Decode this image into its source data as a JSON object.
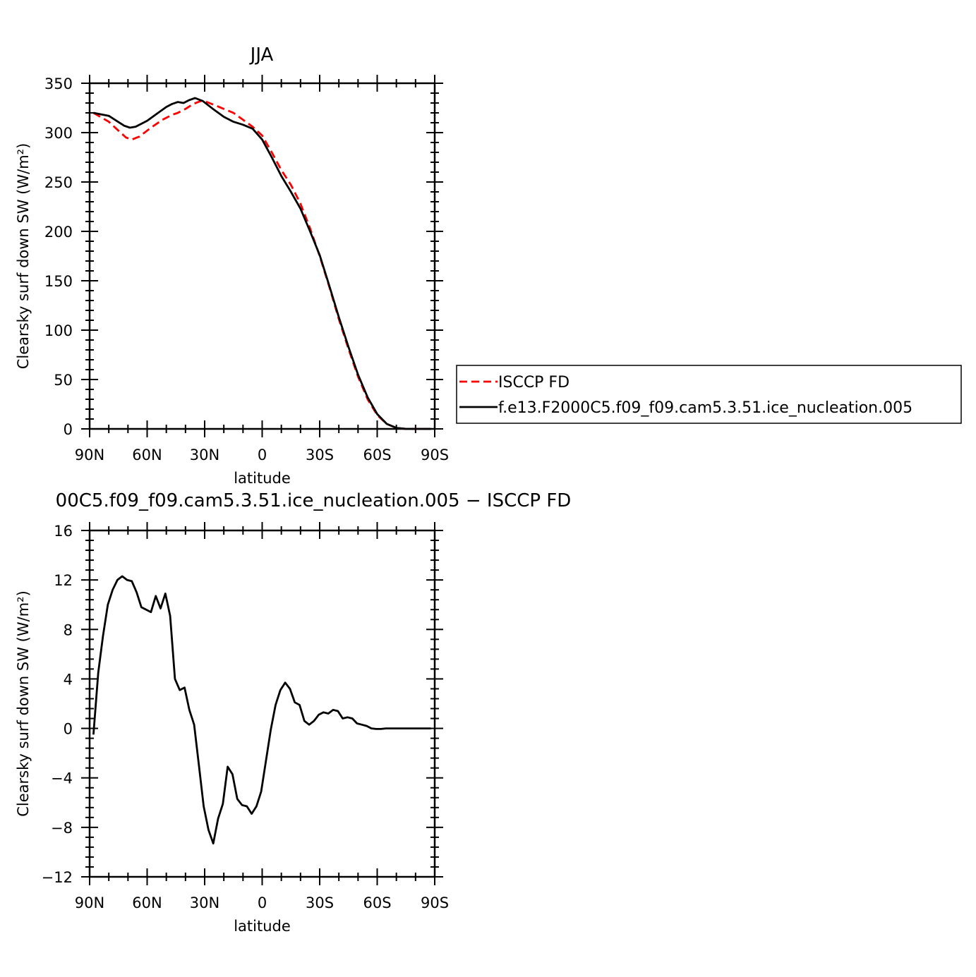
{
  "chart_data": [
    {
      "type": "line",
      "title": "JJA",
      "xlabel": "latitude",
      "ylabel": "Clearsky surf down SW (W/m²)",
      "xlim": [
        -90,
        90
      ],
      "ylim": [
        0,
        350
      ],
      "x_reversed": true,
      "xticks": [
        {
          "v": -90,
          "label": "90N"
        },
        {
          "v": -60,
          "label": "60N"
        },
        {
          "v": -30,
          "label": "30N"
        },
        {
          "v": 0,
          "label": "0"
        },
        {
          "v": 30,
          "label": "30S"
        },
        {
          "v": 60,
          "label": "60S"
        },
        {
          "v": 90,
          "label": "90S"
        }
      ],
      "yticks": [
        {
          "v": 0,
          "label": "0"
        },
        {
          "v": 50,
          "label": "50"
        },
        {
          "v": 100,
          "label": "100"
        },
        {
          "v": 150,
          "label": "150"
        },
        {
          "v": 200,
          "label": "200"
        },
        {
          "v": 250,
          "label": "250"
        },
        {
          "v": 300,
          "label": "300"
        },
        {
          "v": 350,
          "label": "350"
        }
      ],
      "legend_position": "right",
      "series": [
        {
          "name": "ISCCP FD",
          "color": "#ff0000",
          "dash": "dashed",
          "points": [
            [
              -88,
              320
            ],
            [
              -80,
              311
            ],
            [
              -75,
              302
            ],
            [
              -71,
              295
            ],
            [
              -68,
              293
            ],
            [
              -64,
              296
            ],
            [
              -58,
              305
            ],
            [
              -52,
              313
            ],
            [
              -47,
              318
            ],
            [
              -44,
              320
            ],
            [
              -40,
              324
            ],
            [
              -36,
              329
            ],
            [
              -32,
              332
            ],
            [
              -29,
              331
            ],
            [
              -25,
              328
            ],
            [
              -20,
              324
            ],
            [
              -15,
              320
            ],
            [
              -10,
              313
            ],
            [
              -5,
              306
            ],
            [
              0,
              297
            ],
            [
              5,
              280
            ],
            [
              10,
              262
            ],
            [
              15,
              247
            ],
            [
              20,
              228
            ],
            [
              25,
              203
            ],
            [
              30,
              175
            ],
            [
              35,
              144
            ],
            [
              40,
              111
            ],
            [
              45,
              81
            ],
            [
              50,
              53
            ],
            [
              55,
              30
            ],
            [
              60,
              14
            ],
            [
              65,
              5
            ],
            [
              70,
              1
            ],
            [
              75,
              0
            ],
            [
              80,
              0
            ],
            [
              88,
              0
            ]
          ]
        },
        {
          "name": "f.e13.F2000C5.f09_f09.cam5.3.51.ice_nucleation.005",
          "color": "#000000",
          "dash": "solid",
          "points": [
            [
              -88,
              320
            ],
            [
              -80,
              317
            ],
            [
              -76,
              312
            ],
            [
              -72,
              307
            ],
            [
              -69,
              305
            ],
            [
              -66,
              306
            ],
            [
              -60,
              312
            ],
            [
              -55,
              319
            ],
            [
              -50,
              326
            ],
            [
              -47,
              329
            ],
            [
              -44,
              331
            ],
            [
              -41,
              330
            ],
            [
              -38,
              333
            ],
            [
              -35,
              335
            ],
            [
              -31,
              332
            ],
            [
              -25,
              323
            ],
            [
              -20,
              316
            ],
            [
              -15,
              311
            ],
            [
              -10,
              308
            ],
            [
              -5,
              304
            ],
            [
              0,
              293
            ],
            [
              5,
              275
            ],
            [
              10,
              256
            ],
            [
              15,
              240
            ],
            [
              20,
              223
            ],
            [
              25,
              200
            ],
            [
              30,
              176
            ],
            [
              35,
              145
            ],
            [
              40,
              113
            ],
            [
              45,
              83
            ],
            [
              50,
              55
            ],
            [
              55,
              32
            ],
            [
              60,
              15
            ],
            [
              65,
              5
            ],
            [
              70,
              1
            ],
            [
              75,
              0
            ],
            [
              80,
              0
            ],
            [
              88,
              0
            ]
          ]
        }
      ]
    },
    {
      "type": "line",
      "title": "00C5.f09_f09.cam5.3.51.ice_nucleation.005 − ISCCP FD",
      "xlabel": "latitude",
      "ylabel": "Clearsky surf down SW (W/m²)",
      "xlim": [
        -90,
        90
      ],
      "ylim": [
        -12,
        16
      ],
      "x_reversed": true,
      "xticks": [
        {
          "v": -90,
          "label": "90N"
        },
        {
          "v": -60,
          "label": "60N"
        },
        {
          "v": -30,
          "label": "30N"
        },
        {
          "v": 0,
          "label": "0"
        },
        {
          "v": 30,
          "label": "30S"
        },
        {
          "v": 60,
          "label": "60S"
        },
        {
          "v": 90,
          "label": "90S"
        }
      ],
      "yticks": [
        {
          "v": -12,
          "label": "−12"
        },
        {
          "v": -8,
          "label": "−8"
        },
        {
          "v": -4,
          "label": "−4"
        },
        {
          "v": 0,
          "label": "0"
        },
        {
          "v": 4,
          "label": "4"
        },
        {
          "v": 8,
          "label": "8"
        },
        {
          "v": 12,
          "label": "12"
        },
        {
          "v": 16,
          "label": "16"
        }
      ],
      "series": [
        {
          "color": "#000000",
          "dash": "solid",
          "points": [
            [
              -88,
              -0.5
            ],
            [
              -85.5,
              4.5
            ],
            [
              -83,
              7.5
            ],
            [
              -80.5,
              10
            ],
            [
              -78,
              11.2
            ],
            [
              -75.5,
              12
            ],
            [
              -73,
              12.3
            ],
            [
              -70.5,
              12
            ],
            [
              -68,
              11.9
            ],
            [
              -65.5,
              11
            ],
            [
              -63,
              9.8
            ],
            [
              -60.5,
              9.6
            ],
            [
              -58,
              9.4
            ],
            [
              -55.5,
              10.7
            ],
            [
              -53,
              9.7
            ],
            [
              -50.5,
              10.9
            ],
            [
              -48,
              9.1
            ],
            [
              -45.5,
              4
            ],
            [
              -43,
              3.1
            ],
            [
              -40.5,
              3.3
            ],
            [
              -38,
              1.5
            ],
            [
              -35.5,
              0.3
            ],
            [
              -33,
              -3
            ],
            [
              -30.5,
              -6.3
            ],
            [
              -28,
              -8.2
            ],
            [
              -25.5,
              -9.3
            ],
            [
              -23,
              -7.3
            ],
            [
              -20.5,
              -6.1
            ],
            [
              -18,
              -3.1
            ],
            [
              -15.5,
              -3.7
            ],
            [
              -13,
              -5.7
            ],
            [
              -10.5,
              -6.2
            ],
            [
              -8,
              -6.3
            ],
            [
              -5.5,
              -6.9
            ],
            [
              -3,
              -6.3
            ],
            [
              -0.5,
              -5.1
            ],
            [
              2,
              -2.6
            ],
            [
              4.5,
              -0.1
            ],
            [
              7,
              1.9
            ],
            [
              9.5,
              3.1
            ],
            [
              12,
              3.7
            ],
            [
              14.5,
              3.2
            ],
            [
              17,
              2.1
            ],
            [
              19.5,
              1.9
            ],
            [
              22,
              0.6
            ],
            [
              24.5,
              0.3
            ],
            [
              27,
              0.6
            ],
            [
              29.5,
              1.1
            ],
            [
              32,
              1.3
            ],
            [
              34.5,
              1.2
            ],
            [
              37,
              1.5
            ],
            [
              39.5,
              1.4
            ],
            [
              42,
              0.8
            ],
            [
              44.5,
              0.9
            ],
            [
              47,
              0.8
            ],
            [
              49.5,
              0.4
            ],
            [
              52,
              0.3
            ],
            [
              54.5,
              0.2
            ],
            [
              57,
              0
            ],
            [
              59.5,
              -0.05
            ],
            [
              62,
              -0.05
            ],
            [
              64.5,
              0
            ],
            [
              67,
              0
            ],
            [
              69.5,
              0
            ],
            [
              72,
              0
            ],
            [
              75,
              0
            ],
            [
              78,
              0
            ],
            [
              82,
              0
            ],
            [
              85,
              0
            ],
            [
              88,
              0
            ]
          ]
        }
      ]
    }
  ]
}
